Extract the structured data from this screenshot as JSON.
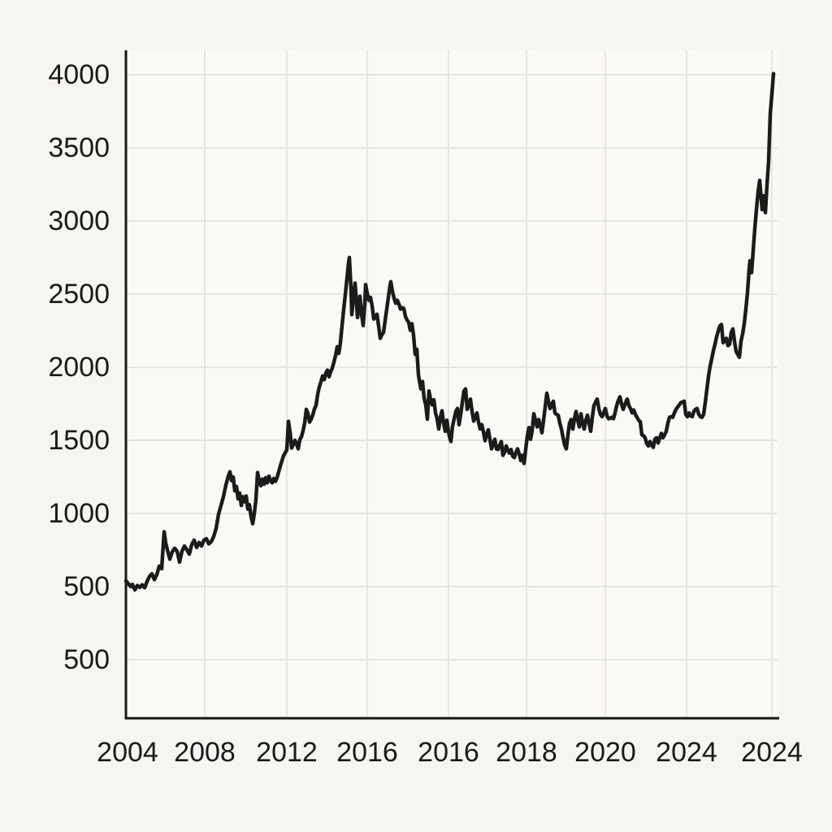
{
  "figure": {
    "background_color": "#f7f5f2",
    "plot_background_color": "#faf9f6",
    "title": ""
  },
  "chart_data": {
    "type": "line",
    "title": "",
    "xlabel": "",
    "ylabel": "",
    "grid": true,
    "legend": false,
    "line_color": "#1b1b1b",
    "grid_color": "#e7e5e1",
    "axis_color": "#161616",
    "label_color": "#1a1a1a",
    "x_tick_labels": [
      "2004",
      "2008",
      "2012",
      "2016",
      "2016",
      "2018",
      "2020",
      "2024",
      "2024"
    ],
    "y_tick_labels": [
      "4000",
      "3500",
      "3000",
      "2500",
      "2000",
      "1500",
      "1000",
      "500",
      "500"
    ],
    "ylim": [
      250,
      4100
    ],
    "points": [
      [
        155,
        540
      ],
      [
        158,
        520
      ],
      [
        161,
        500
      ],
      [
        163,
        515
      ],
      [
        166,
        478
      ],
      [
        169,
        508
      ],
      [
        172,
        495
      ],
      [
        175,
        512
      ],
      [
        178,
        492
      ],
      [
        181,
        535
      ],
      [
        184,
        570
      ],
      [
        187,
        588
      ],
      [
        190,
        548
      ],
      [
        193,
        582
      ],
      [
        196,
        640
      ],
      [
        199,
        622
      ],
      [
        202,
        875
      ],
      [
        204,
        798
      ],
      [
        206,
        752
      ],
      [
        209,
        688
      ],
      [
        212,
        738
      ],
      [
        215,
        762
      ],
      [
        218,
        742
      ],
      [
        221,
        668
      ],
      [
        224,
        742
      ],
      [
        227,
        778
      ],
      [
        230,
        752
      ],
      [
        233,
        722
      ],
      [
        236,
        788
      ],
      [
        239,
        818
      ],
      [
        242,
        768
      ],
      [
        245,
        802
      ],
      [
        248,
        778
      ],
      [
        251,
        818
      ],
      [
        254,
        828
      ],
      [
        257,
        792
      ],
      [
        260,
        808
      ],
      [
        263,
        842
      ],
      [
        266,
        898
      ],
      [
        269,
        995
      ],
      [
        272,
        1055
      ],
      [
        275,
        1115
      ],
      [
        278,
        1195
      ],
      [
        281,
        1255
      ],
      [
        283,
        1285
      ],
      [
        285,
        1225
      ],
      [
        287,
        1250
      ],
      [
        289,
        1155
      ],
      [
        291,
        1185
      ],
      [
        293,
        1100
      ],
      [
        295,
        1140
      ],
      [
        297,
        1055
      ],
      [
        299,
        1115
      ],
      [
        301,
        1080
      ],
      [
        303,
        1120
      ],
      [
        305,
        1030
      ],
      [
        307,
        1060
      ],
      [
        309,
        980
      ],
      [
        311,
        930
      ],
      [
        313,
        1000
      ],
      [
        315,
        1095
      ],
      [
        317,
        1280
      ],
      [
        319,
        1225
      ],
      [
        321,
        1190
      ],
      [
        323,
        1235
      ],
      [
        325,
        1200
      ],
      [
        327,
        1245
      ],
      [
        329,
        1210
      ],
      [
        331,
        1255
      ],
      [
        333,
        1225
      ],
      [
        335,
        1210
      ],
      [
        337,
        1240
      ],
      [
        339,
        1220
      ],
      [
        341,
        1245
      ],
      [
        343,
        1285
      ],
      [
        345,
        1325
      ],
      [
        347,
        1360
      ],
      [
        349,
        1395
      ],
      [
        351,
        1415
      ],
      [
        353,
        1435
      ],
      [
        355,
        1630
      ],
      [
        357,
        1555
      ],
      [
        359,
        1448
      ],
      [
        361,
        1472
      ],
      [
        363,
        1500
      ],
      [
        365,
        1476
      ],
      [
        367,
        1442
      ],
      [
        369,
        1505
      ],
      [
        371,
        1525
      ],
      [
        373,
        1565
      ],
      [
        375,
        1620
      ],
      [
        377,
        1712
      ],
      [
        379,
        1685
      ],
      [
        381,
        1625
      ],
      [
        383,
        1645
      ],
      [
        385,
        1675
      ],
      [
        387,
        1715
      ],
      [
        389,
        1740
      ],
      [
        391,
        1815
      ],
      [
        393,
        1865
      ],
      [
        395,
        1900
      ],
      [
        397,
        1940
      ],
      [
        399,
        1915
      ],
      [
        401,
        1960
      ],
      [
        403,
        1980
      ],
      [
        405,
        1935
      ],
      [
        407,
        1970
      ],
      [
        409,
        1995
      ],
      [
        411,
        2035
      ],
      [
        413,
        2080
      ],
      [
        415,
        2140
      ],
      [
        417,
        2095
      ],
      [
        419,
        2170
      ],
      [
        421,
        2285
      ],
      [
        423,
        2395
      ],
      [
        425,
        2495
      ],
      [
        427,
        2605
      ],
      [
        429,
        2715
      ],
      [
        430,
        2750
      ],
      [
        432,
        2535
      ],
      [
        433,
        2360
      ],
      [
        435,
        2475
      ],
      [
        437,
        2575
      ],
      [
        439,
        2425
      ],
      [
        440,
        2340
      ],
      [
        442,
        2415
      ],
      [
        443,
        2485
      ],
      [
        445,
        2365
      ],
      [
        447,
        2285
      ],
      [
        449,
        2435
      ],
      [
        450,
        2565
      ],
      [
        452,
        2505
      ],
      [
        454,
        2458
      ],
      [
        456,
        2478
      ],
      [
        458,
        2420
      ],
      [
        460,
        2330
      ],
      [
        462,
        2342
      ],
      [
        464,
        2362
      ],
      [
        466,
        2282
      ],
      [
        468,
        2198
      ],
      [
        470,
        2222
      ],
      [
        472,
        2238
      ],
      [
        474,
        2318
      ],
      [
        476,
        2398
      ],
      [
        478,
        2478
      ],
      [
        480,
        2558
      ],
      [
        481,
        2585
      ],
      [
        483,
        2518
      ],
      [
        485,
        2472
      ],
      [
        487,
        2438
      ],
      [
        489,
        2458
      ],
      [
        491,
        2432
      ],
      [
        493,
        2398
      ],
      [
        495,
        2408
      ],
      [
        497,
        2402
      ],
      [
        499,
        2348
      ],
      [
        501,
        2322
      ],
      [
        503,
        2308
      ],
      [
        505,
        2252
      ],
      [
        507,
        2298
      ],
      [
        509,
        2218
      ],
      [
        511,
        2088
      ],
      [
        513,
        2122
      ],
      [
        515,
        1948
      ],
      [
        517,
        1882
      ],
      [
        518,
        1852
      ],
      [
        520,
        1902
      ],
      [
        522,
        1788
      ],
      [
        524,
        1742
      ],
      [
        526,
        1645
      ],
      [
        528,
        1838
      ],
      [
        530,
        1778
      ],
      [
        532,
        1742
      ],
      [
        534,
        1778
      ],
      [
        536,
        1688
      ],
      [
        538,
        1648
      ],
      [
        540,
        1578
      ],
      [
        542,
        1658
      ],
      [
        544,
        1702
      ],
      [
        546,
        1618
      ],
      [
        548,
        1562
      ],
      [
        550,
        1638
      ],
      [
        552,
        1558
      ],
      [
        554,
        1508
      ],
      [
        555,
        1492
      ],
      [
        557,
        1598
      ],
      [
        559,
        1648
      ],
      [
        561,
        1698
      ],
      [
        563,
        1718
      ],
      [
        565,
        1608
      ],
      [
        567,
        1678
      ],
      [
        569,
        1758
      ],
      [
        571,
        1838
      ],
      [
        573,
        1852
      ],
      [
        575,
        1712
      ],
      [
        577,
        1742
      ],
      [
        579,
        1782
      ],
      [
        581,
        1698
      ],
      [
        583,
        1632
      ],
      [
        585,
        1658
      ],
      [
        587,
        1688
      ],
      [
        589,
        1622
      ],
      [
        591,
        1578
      ],
      [
        593,
        1608
      ],
      [
        595,
        1558
      ],
      [
        597,
        1498
      ],
      [
        599,
        1542
      ],
      [
        601,
        1572
      ],
      [
        603,
        1508
      ],
      [
        605,
        1442
      ],
      [
        607,
        1478
      ],
      [
        609,
        1508
      ],
      [
        611,
        1442
      ],
      [
        613,
        1438
      ],
      [
        615,
        1468
      ],
      [
        617,
        1492
      ],
      [
        619,
        1398
      ],
      [
        621,
        1418
      ],
      [
        623,
        1462
      ],
      [
        625,
        1432
      ],
      [
        627,
        1412
      ],
      [
        629,
        1438
      ],
      [
        631,
        1392
      ],
      [
        633,
        1382
      ],
      [
        635,
        1418
      ],
      [
        637,
        1442
      ],
      [
        639,
        1408
      ],
      [
        641,
        1362
      ],
      [
        643,
        1398
      ],
      [
        645,
        1342
      ],
      [
        647,
        1438
      ],
      [
        649,
        1528
      ],
      [
        651,
        1588
      ],
      [
        653,
        1508
      ],
      [
        655,
        1568
      ],
      [
        657,
        1682
      ],
      [
        659,
        1638
      ],
      [
        661,
        1592
      ],
      [
        663,
        1642
      ],
      [
        665,
        1602
      ],
      [
        667,
        1552
      ],
      [
        669,
        1638
      ],
      [
        671,
        1728
      ],
      [
        673,
        1822
      ],
      [
        675,
        1768
      ],
      [
        677,
        1718
      ],
      [
        679,
        1742
      ],
      [
        681,
        1768
      ],
      [
        683,
        1688
      ],
      [
        685,
        1678
      ],
      [
        687,
        1672
      ],
      [
        689,
        1618
      ],
      [
        691,
        1578
      ],
      [
        693,
        1518
      ],
      [
        695,
        1468
      ],
      [
        697,
        1442
      ],
      [
        699,
        1538
      ],
      [
        701,
        1618
      ],
      [
        703,
        1642
      ],
      [
        705,
        1578
      ],
      [
        707,
        1648
      ],
      [
        709,
        1698
      ],
      [
        711,
        1638
      ],
      [
        713,
        1592
      ],
      [
        715,
        1682
      ],
      [
        717,
        1618
      ],
      [
        719,
        1578
      ],
      [
        721,
        1638
      ],
      [
        723,
        1672
      ],
      [
        725,
        1618
      ],
      [
        727,
        1562
      ],
      [
        729,
        1658
      ],
      [
        731,
        1738
      ],
      [
        733,
        1762
      ],
      [
        735,
        1782
      ],
      [
        737,
        1718
      ],
      [
        739,
        1678
      ],
      [
        741,
        1662
      ],
      [
        743,
        1688
      ],
      [
        745,
        1718
      ],
      [
        747,
        1668
      ],
      [
        749,
        1648
      ],
      [
        751,
        1652
      ],
      [
        753,
        1658
      ],
      [
        755,
        1648
      ],
      [
        757,
        1688
      ],
      [
        759,
        1738
      ],
      [
        761,
        1772
      ],
      [
        763,
        1798
      ],
      [
        765,
        1748
      ],
      [
        767,
        1712
      ],
      [
        769,
        1742
      ],
      [
        771,
        1772
      ],
      [
        772,
        1782
      ],
      [
        774,
        1738
      ],
      [
        776,
        1718
      ],
      [
        778,
        1688
      ],
      [
        780,
        1708
      ],
      [
        782,
        1678
      ],
      [
        784,
        1658
      ],
      [
        786,
        1638
      ],
      [
        788,
        1628
      ],
      [
        790,
        1538
      ],
      [
        792,
        1532
      ],
      [
        794,
        1518
      ],
      [
        796,
        1478
      ],
      [
        798,
        1462
      ],
      [
        800,
        1492
      ],
      [
        802,
        1468
      ],
      [
        804,
        1452
      ],
      [
        806,
        1508
      ],
      [
        808,
        1518
      ],
      [
        810,
        1482
      ],
      [
        812,
        1518
      ],
      [
        814,
        1548
      ],
      [
        816,
        1518
      ],
      [
        818,
        1538
      ],
      [
        820,
        1562
      ],
      [
        822,
        1618
      ],
      [
        824,
        1658
      ],
      [
        826,
        1662
      ],
      [
        828,
        1658
      ],
      [
        830,
        1688
      ],
      [
        832,
        1712
      ],
      [
        834,
        1728
      ],
      [
        836,
        1742
      ],
      [
        838,
        1758
      ],
      [
        840,
        1762
      ],
      [
        842,
        1768
      ],
      [
        844,
        1678
      ],
      [
        846,
        1662
      ],
      [
        848,
        1688
      ],
      [
        850,
        1668
      ],
      [
        852,
        1662
      ],
      [
        854,
        1698
      ],
      [
        856,
        1712
      ],
      [
        858,
        1718
      ],
      [
        860,
        1678
      ],
      [
        862,
        1662
      ],
      [
        864,
        1658
      ],
      [
        866,
        1678
      ],
      [
        868,
        1758
      ],
      [
        870,
        1848
      ],
      [
        872,
        1938
      ],
      [
        874,
        2008
      ],
      [
        876,
        2058
      ],
      [
        878,
        2112
      ],
      [
        880,
        2158
      ],
      [
        882,
        2208
      ],
      [
        884,
        2248
      ],
      [
        886,
        2282
      ],
      [
        888,
        2292
      ],
      [
        890,
        2168
      ],
      [
        892,
        2182
      ],
      [
        894,
        2198
      ],
      [
        896,
        2148
      ],
      [
        898,
        2158
      ],
      [
        900,
        2238
      ],
      [
        902,
        2262
      ],
      [
        904,
        2178
      ],
      [
        906,
        2108
      ],
      [
        908,
        2088
      ],
      [
        910,
        2068
      ],
      [
        912,
        2178
      ],
      [
        914,
        2228
      ],
      [
        916,
        2298
      ],
      [
        918,
        2398
      ],
      [
        920,
        2512
      ],
      [
        922,
        2668
      ],
      [
        923,
        2728
      ],
      [
        925,
        2648
      ],
      [
        927,
        2798
      ],
      [
        929,
        2948
      ],
      [
        931,
        3078
      ],
      [
        933,
        3198
      ],
      [
        935,
        3278
      ],
      [
        937,
        3148
      ],
      [
        938,
        3078
      ],
      [
        940,
        3172
      ],
      [
        942,
        3058
      ],
      [
        944,
        3248
      ],
      [
        946,
        3408
      ],
      [
        948,
        3732
      ],
      [
        950,
        3868
      ],
      [
        952,
        4008
      ]
    ]
  }
}
